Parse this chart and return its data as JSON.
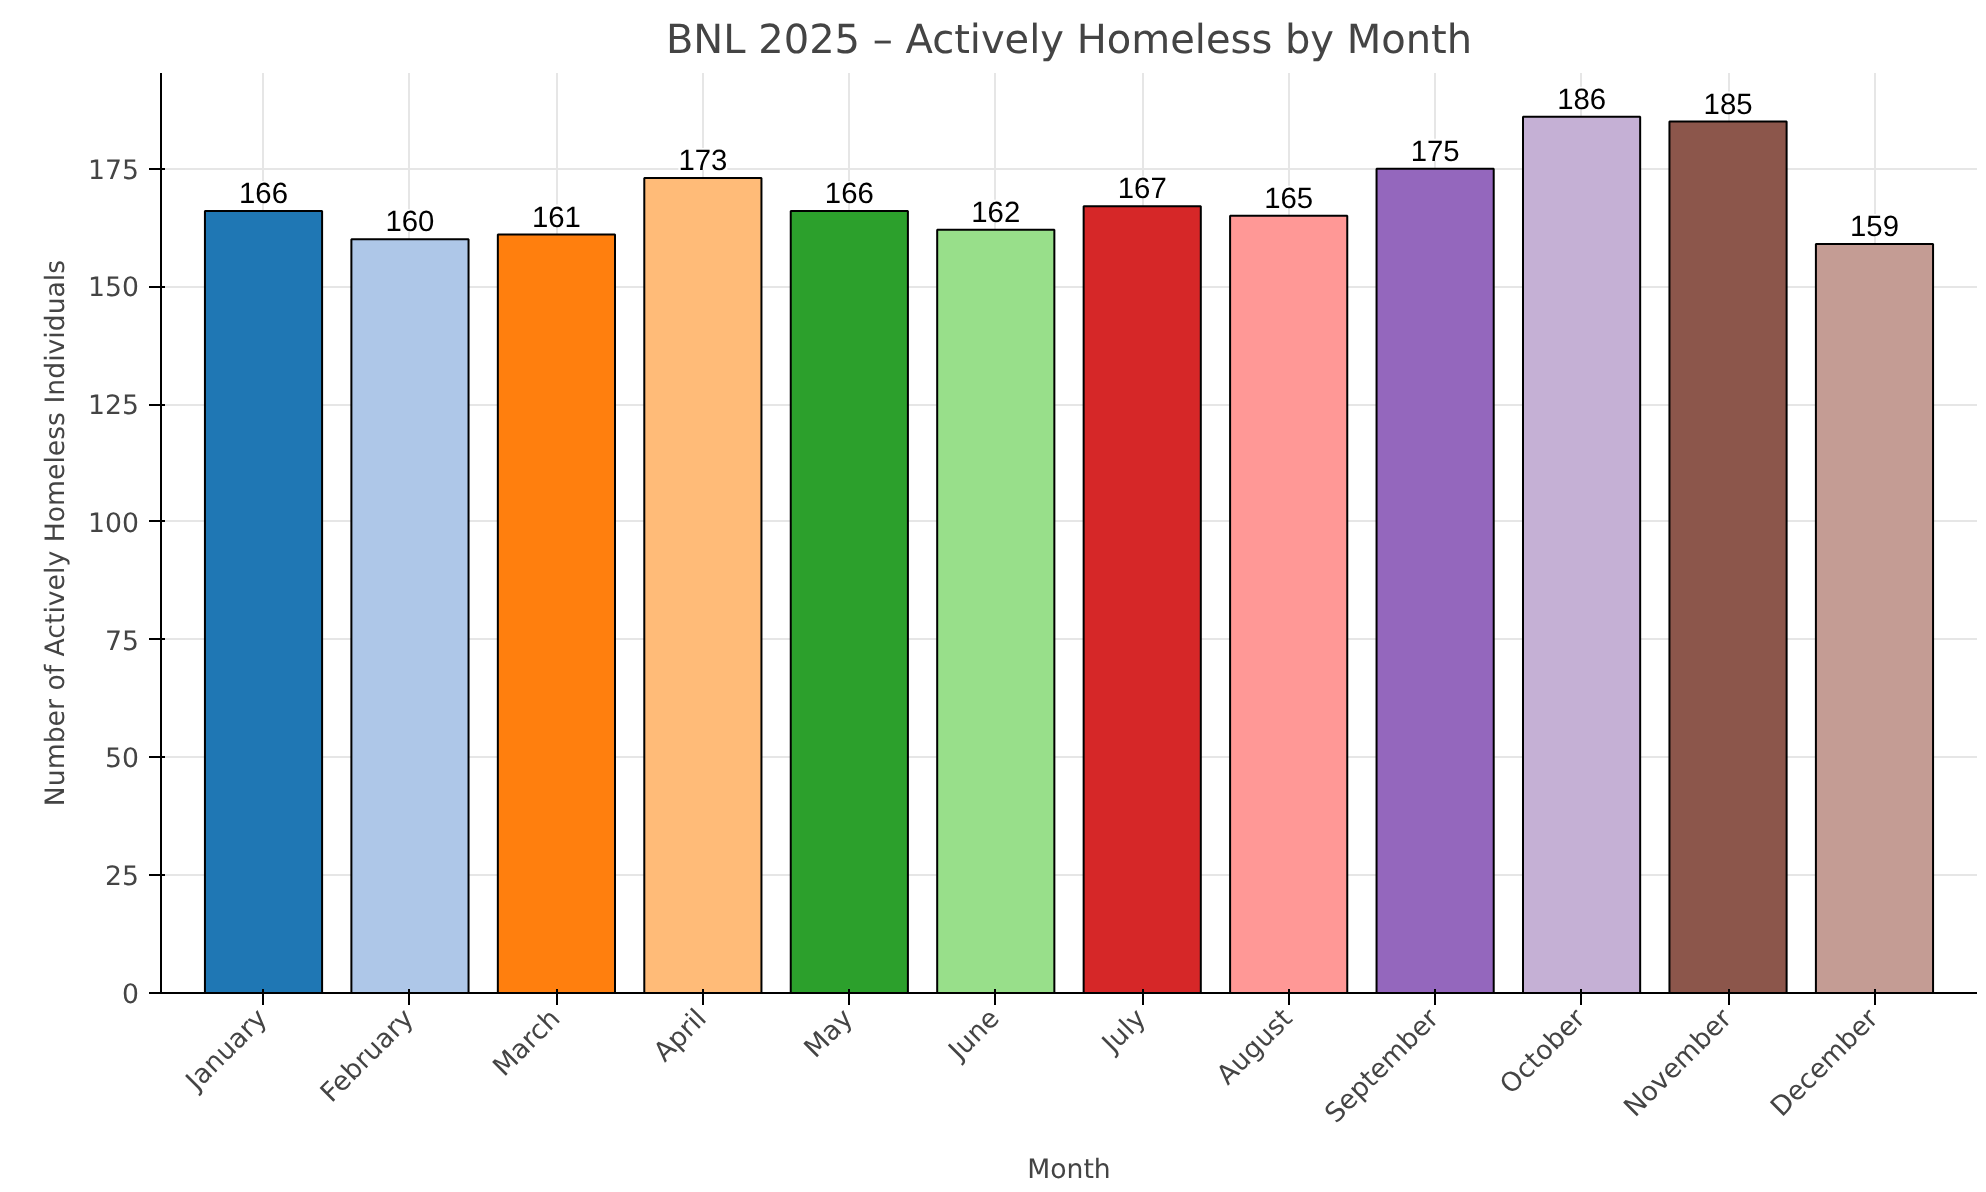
{
  "chart_data": {
    "type": "bar",
    "title": "BNL 2025 – Actively Homeless by Month",
    "xlabel": "Month",
    "ylabel": "Number of Actively Homeless Individuals",
    "categories": [
      "January",
      "February",
      "March",
      "April",
      "May",
      "June",
      "July",
      "August",
      "September",
      "October",
      "November",
      "December"
    ],
    "values": [
      166,
      160,
      161,
      173,
      166,
      162,
      167,
      165,
      175,
      186,
      185,
      159
    ],
    "colors": [
      "#1f77b4",
      "#aec7e8",
      "#ff7f0e",
      "#ffbb78",
      "#2ca02c",
      "#98df8a",
      "#d62728",
      "#ff9896",
      "#9467bd",
      "#c5b0d5",
      "#8c564b",
      "#c49c94"
    ],
    "ylim": [
      0,
      195.3
    ],
    "yticks": [
      0,
      25,
      50,
      75,
      100,
      125,
      150,
      175
    ],
    "grid": true,
    "data_labels": true
  }
}
